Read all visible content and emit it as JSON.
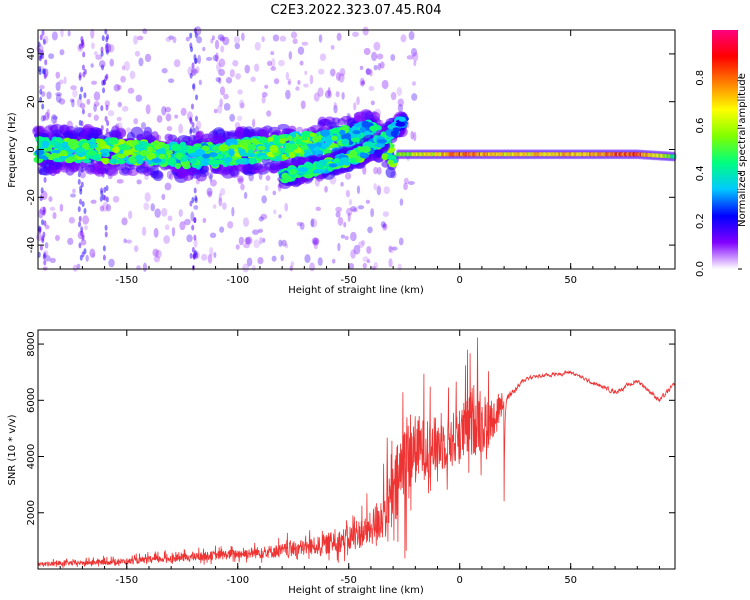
{
  "title": "C2E3.2022.323.07.45.R04",
  "chart_data": [
    {
      "type": "heatmap",
      "xlabel": "Height of straight line (km)",
      "ylabel": "Frequency (Hz)",
      "xlim": [
        -190,
        97
      ],
      "ylim": [
        -50,
        50
      ],
      "xticks": [
        -150,
        -100,
        -50,
        0,
        50
      ],
      "yticks": [
        -40,
        -20,
        0,
        20,
        40
      ],
      "grid": false,
      "colorbar": {
        "label": "Normalized spectral amplitude",
        "range": [
          0,
          1
        ],
        "ticks": [
          "0.0",
          "0.2",
          "0.4",
          "0.6",
          "0.8"
        ],
        "colormap": [
          "#ffffff",
          "#8000ff",
          "#0000ff",
          "#00c8ff",
          "#00ff80",
          "#80ff00",
          "#ffff00",
          "#ff8000",
          "#ff0000",
          "#ff0080"
        ]
      },
      "ridge": [
        {
          "x": -190,
          "y": 0,
          "a": 0.5
        },
        {
          "x": -150,
          "y": -1,
          "a": 0.55
        },
        {
          "x": -120,
          "y": -3,
          "a": 0.45
        },
        {
          "x": -100,
          "y": -1,
          "a": 0.55
        },
        {
          "x": -80,
          "y": 1,
          "a": 0.55
        },
        {
          "x": -60,
          "y": 3,
          "a": 0.5
        },
        {
          "x": -40,
          "y": 7,
          "a": 0.4
        },
        {
          "x": -30,
          "y": -2,
          "a": 0.55
        },
        {
          "x": -10,
          "y": -2,
          "a": 0.7
        },
        {
          "x": 0,
          "y": -2,
          "a": 0.85
        },
        {
          "x": 20,
          "y": -2,
          "a": 0.7
        },
        {
          "x": 50,
          "y": -2,
          "a": 0.75
        },
        {
          "x": 80,
          "y": -2,
          "a": 0.85
        },
        {
          "x": 97,
          "y": -3,
          "a": 0.5
        }
      ],
      "branch": [
        {
          "x": -80,
          "y": -11,
          "a": 0.45
        },
        {
          "x": -60,
          "y": -7,
          "a": 0.5
        },
        {
          "x": -45,
          "y": -2,
          "a": 0.5
        },
        {
          "x": -35,
          "y": 4,
          "a": 0.45
        },
        {
          "x": -25,
          "y": 12,
          "a": 0.3
        }
      ]
    },
    {
      "type": "line",
      "xlabel": "Height of straight line (km)",
      "ylabel": "SNR (10 * v/v)",
      "xlim": [
        -190,
        97
      ],
      "ylim": [
        0,
        8500
      ],
      "xticks": [
        -150,
        -100,
        -50,
        0,
        50
      ],
      "yticks": [
        2000,
        4000,
        6000,
        8000
      ],
      "grid": false,
      "color": "#ee3333",
      "envelope": [
        {
          "x": -190,
          "base": 150,
          "amp": 150
        },
        {
          "x": -150,
          "base": 250,
          "amp": 200
        },
        {
          "x": -120,
          "base": 400,
          "amp": 300
        },
        {
          "x": -100,
          "base": 500,
          "amp": 350
        },
        {
          "x": -80,
          "base": 600,
          "amp": 500
        },
        {
          "x": -60,
          "base": 800,
          "amp": 700
        },
        {
          "x": -50,
          "base": 1000,
          "amp": 900
        },
        {
          "x": -40,
          "base": 1300,
          "amp": 1200
        },
        {
          "x": -30,
          "base": 2200,
          "amp": 2500
        },
        {
          "x": -25,
          "base": 3500,
          "amp": 3800
        },
        {
          "x": -20,
          "base": 4000,
          "amp": 2500
        },
        {
          "x": -10,
          "base": 4200,
          "amp": 2000
        },
        {
          "x": 0,
          "base": 4500,
          "amp": 2000
        },
        {
          "x": 8,
          "base": 5200,
          "amp": 2800
        },
        {
          "x": 12,
          "base": 4800,
          "amp": 2000
        },
        {
          "x": 20,
          "base": 6000,
          "amp": 600
        },
        {
          "x": 30,
          "base": 6800,
          "amp": 300
        },
        {
          "x": 50,
          "base": 7000,
          "amp": 250
        },
        {
          "x": 60,
          "base": 6600,
          "amp": 250
        },
        {
          "x": 70,
          "base": 6300,
          "amp": 300
        },
        {
          "x": 80,
          "base": 6700,
          "amp": 300
        },
        {
          "x": 90,
          "base": 6000,
          "amp": 400
        },
        {
          "x": 97,
          "base": 6600,
          "amp": 300
        }
      ]
    }
  ]
}
